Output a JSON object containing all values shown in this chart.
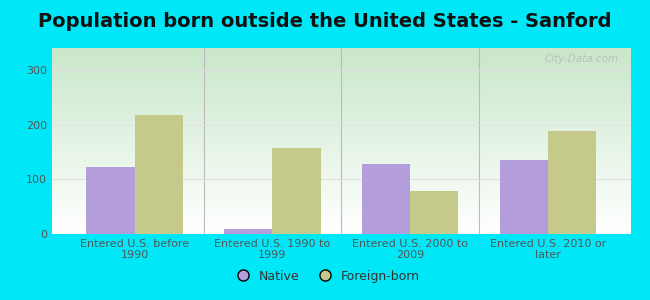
{
  "title": "Population born outside the United States - Sanford",
  "categories": [
    "Entered U.S. before\n1990",
    "Entered U.S. 1990 to\n1999",
    "Entered U.S. 2000 to\n2009",
    "Entered U.S. 2010 or\nlater"
  ],
  "native_values": [
    122,
    10,
    128,
    135
  ],
  "foreign_values": [
    218,
    158,
    78,
    188
  ],
  "native_color": "#b39ddb",
  "foreign_color": "#c5c98a",
  "background_outer": "#00e8f8",
  "background_grad_top": "#c8e6c9",
  "background_grad_bottom": "#ffffff",
  "grid_color": "#e0e0e0",
  "ylim": [
    0,
    340
  ],
  "yticks": [
    0,
    100,
    200,
    300
  ],
  "bar_width": 0.35,
  "title_fontsize": 14,
  "tick_fontsize": 8,
  "legend_fontsize": 9,
  "watermark_text": "City-Data.com",
  "sep_color": "#bbbbbb"
}
